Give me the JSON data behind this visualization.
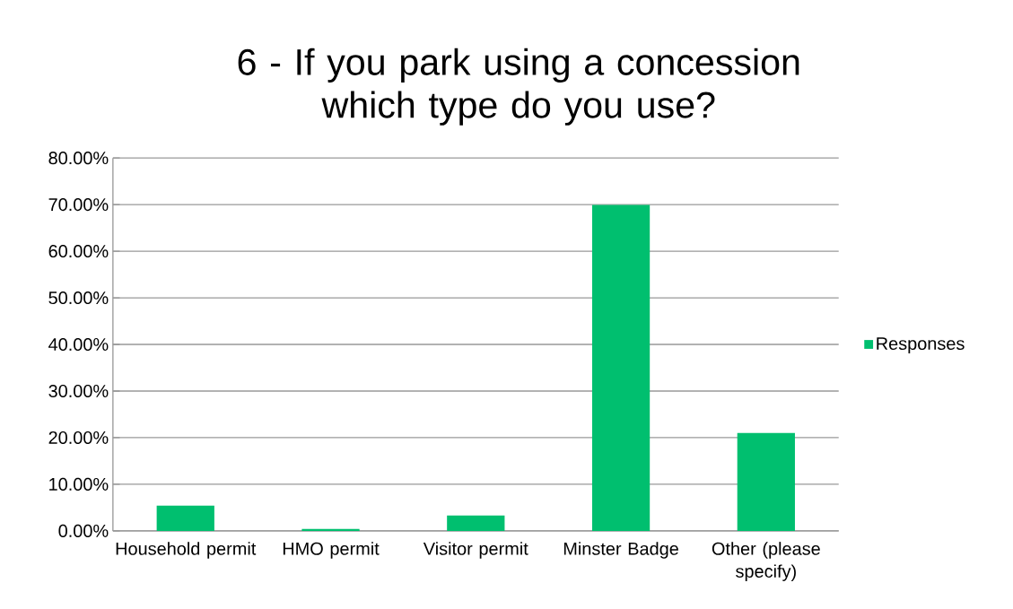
{
  "chart_data": {
    "type": "bar",
    "title": "6 - If you park using a concession which type do you use?",
    "categories": [
      "Household permit",
      "HMO permit",
      "Visitor permit",
      "Minster Badge",
      "Other (please specify)"
    ],
    "series": [
      {
        "name": "Responses",
        "color": "#00bf6f",
        "values": [
          5.4,
          0.4,
          3.3,
          69.9,
          21.0
        ]
      }
    ],
    "ylim": [
      0,
      80
    ],
    "yticks": [
      {
        "value": 0,
        "label": "0.00%"
      },
      {
        "value": 10,
        "label": "10.00%"
      },
      {
        "value": 20,
        "label": "20.00%"
      },
      {
        "value": 30,
        "label": "30.00%"
      },
      {
        "value": 40,
        "label": "40.00%"
      },
      {
        "value": 50,
        "label": "50.00%"
      },
      {
        "value": 60,
        "label": "60.00%"
      },
      {
        "value": 70,
        "label": "70.00%"
      },
      {
        "value": 80,
        "label": "80.00%"
      }
    ],
    "grid": "y",
    "legend": "right"
  }
}
